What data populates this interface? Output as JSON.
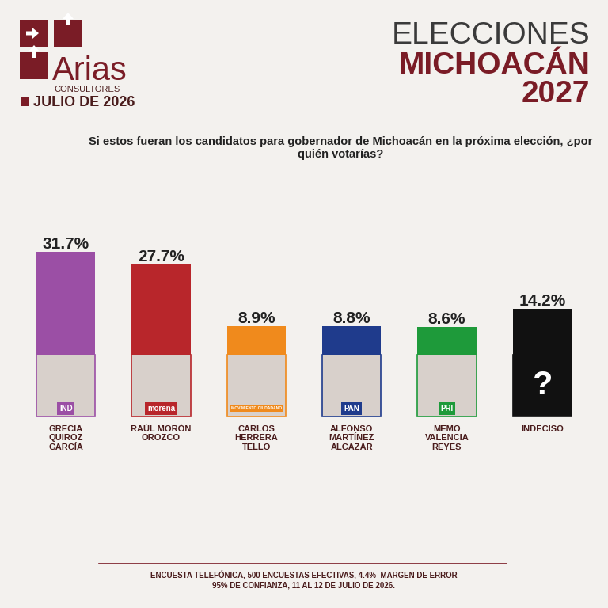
{
  "header": {
    "brand": "Arias",
    "brand_sub": "CONSULTORES",
    "date": "JULIO DE 2026",
    "title_lines": [
      "ELECCIONES",
      "MICHOACÁN",
      "2027"
    ]
  },
  "chart_data": {
    "type": "bar",
    "title": "Si estos fueran los candidatos para gobernador de Michoacán en la próxima elección, ¿por quién votarías?",
    "categories": [
      "GRECIA QUIROZ GARCÍA",
      "RAÚL MORÓN OROZCO",
      "CARLOS HERRERA TELLO",
      "ALFONSO MARTÍNEZ ALCAZAR",
      "MEMO VALENCIA REYES",
      "INDECISO"
    ],
    "values": [
      31.7,
      27.7,
      8.9,
      8.8,
      8.6,
      14.2
    ],
    "value_labels": [
      "31.7%",
      "27.7%",
      "8.9%",
      "8.8%",
      "8.6%",
      "14.2%"
    ],
    "colors": [
      "#9b4fa5",
      "#b8262b",
      "#f08a1c",
      "#1f3b8c",
      "#1e9a3a",
      "#111111"
    ],
    "ylim": [
      0,
      31.7
    ],
    "yticks": [],
    "data_labels": true,
    "tick_labels": "x"
  },
  "candidate_photos": {
    "party_labels": [
      "IND",
      "morena",
      "MOVIMIENTO CIUDADANO",
      "PAN",
      "PRI",
      null
    ],
    "symbols": [
      null,
      null,
      null,
      null,
      null,
      "?"
    ]
  },
  "footer": [
    "ENCUESTA TELEFÓNICA, 500 ENCUESTAS EFECTIVAS, 4.4%  MARGEN DE ERROR",
    "95% DE CONFIANZA, 11 AL 12 DE JULIO DE 2026."
  ]
}
